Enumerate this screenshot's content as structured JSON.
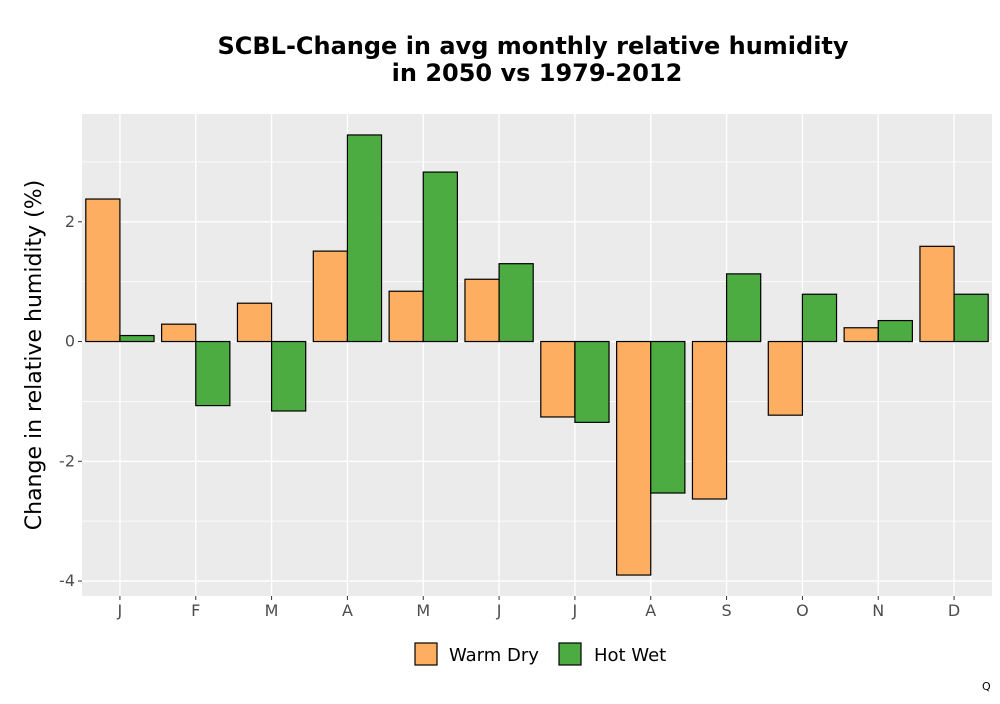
{
  "chart_data": {
    "type": "bar",
    "title_lines": [
      "SCBL-Change in avg monthly relative humidity",
      "in 2050 vs 1979-2012"
    ],
    "xlabel": "",
    "ylabel": "Change in relative humidity (%)",
    "categories": [
      "J",
      "F",
      "M",
      "A",
      "M",
      "J",
      "J",
      "A",
      "S",
      "O",
      "N",
      "D"
    ],
    "series": [
      {
        "name": "Warm Dry",
        "color": "#fdae61",
        "values": [
          2.38,
          0.29,
          0.64,
          1.51,
          0.84,
          1.04,
          -1.26,
          -3.9,
          -2.63,
          -1.23,
          0.23,
          1.59
        ]
      },
      {
        "name": "Hot Wet",
        "color": "#4dac41",
        "values": [
          0.1,
          -1.07,
          -1.16,
          3.45,
          2.83,
          1.3,
          -1.35,
          -2.53,
          1.13,
          0.79,
          0.35,
          0.79
        ]
      }
    ],
    "ylim": [
      -4.25,
      3.8
    ],
    "yticks": [
      -4,
      -2,
      0,
      2
    ],
    "ytick_labels": [
      "-4",
      "-2",
      "0",
      "2"
    ],
    "grid": true,
    "legend_position": "bottom",
    "panel_background": "#ebebeb",
    "gridline_color": "#ffffff",
    "bar_outline_color": "#000000"
  },
  "corner_mark": "Q"
}
